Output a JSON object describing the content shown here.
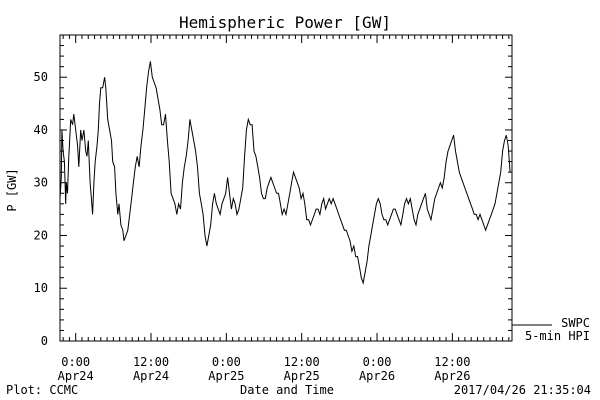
{
  "chart_data": {
    "type": "line",
    "title": "Hemispheric Power [GW]",
    "ylabel": "P [GW]",
    "xlabel": "Date and Time",
    "ylim": [
      0,
      58
    ],
    "yticks": [
      0,
      10,
      20,
      30,
      40,
      50
    ],
    "xlim_hours": [
      -2.5,
      69.5
    ],
    "xticks": [
      {
        "hour": 0,
        "time": "0:00",
        "date": "Apr24"
      },
      {
        "hour": 12,
        "time": "12:00",
        "date": "Apr24"
      },
      {
        "hour": 24,
        "time": "0:00",
        "date": "Apr25"
      },
      {
        "hour": 36,
        "time": "12:00",
        "date": "Apr25"
      },
      {
        "hour": 48,
        "time": "0:00",
        "date": "Apr26"
      },
      {
        "hour": 60,
        "time": "12:00",
        "date": "Apr26"
      }
    ],
    "series": [
      {
        "name": "5-min HPI",
        "source": "SWPC",
        "color": "#000000",
        "x": [
          -2.5,
          -2.3,
          -2.2,
          -2.0,
          -1.8,
          -1.6,
          -1.5,
          -1.3,
          -1.1,
          -1.0,
          -0.8,
          -0.5,
          -0.3,
          0.0,
          0.3,
          0.5,
          0.8,
          1.0,
          1.3,
          1.6,
          1.8,
          2.0,
          2.3,
          2.5,
          2.7,
          2.9,
          3.1,
          3.4,
          3.6,
          3.8,
          4.0,
          4.3,
          4.6,
          4.8,
          5.1,
          5.4,
          5.7,
          5.9,
          6.2,
          6.4,
          6.7,
          6.9,
          7.2,
          7.5,
          7.7,
          8.0,
          8.3,
          8.6,
          8.9,
          9.2,
          9.5,
          9.8,
          10.1,
          10.4,
          10.7,
          11.0,
          11.3,
          11.6,
          11.9,
          12.2,
          12.5,
          12.8,
          13.1,
          13.4,
          13.7,
          14.0,
          14.3,
          14.6,
          14.9,
          15.2,
          15.5,
          15.8,
          16.1,
          16.4,
          16.7,
          17.0,
          17.3,
          17.6,
          17.9,
          18.2,
          18.5,
          18.8,
          19.1,
          19.4,
          19.7,
          20.0,
          20.3,
          20.6,
          20.9,
          21.2,
          21.5,
          21.8,
          22.1,
          22.4,
          22.7,
          23.0,
          23.3,
          23.6,
          23.9,
          24.2,
          24.5,
          24.8,
          25.1,
          25.4,
          25.7,
          26.0,
          26.3,
          26.6,
          26.9,
          27.2,
          27.5,
          27.8,
          28.1,
          28.4,
          28.7,
          29.0,
          29.3,
          29.6,
          29.9,
          30.2,
          30.5,
          30.8,
          31.1,
          31.4,
          31.7,
          32.0,
          32.3,
          32.6,
          32.9,
          33.2,
          33.5,
          33.8,
          34.1,
          34.4,
          34.7,
          35.0,
          35.3,
          35.6,
          35.9,
          36.2,
          36.5,
          36.8,
          37.1,
          37.4,
          37.7,
          38.0,
          38.3,
          38.6,
          38.9,
          39.2,
          39.5,
          39.8,
          40.1,
          40.4,
          40.7,
          41.0,
          41.3,
          41.6,
          41.9,
          42.2,
          42.5,
          42.8,
          43.1,
          43.4,
          43.7,
          44.0,
          44.3,
          44.6,
          44.9,
          45.2,
          45.5,
          45.8,
          46.1,
          46.4,
          46.7,
          47.0,
          47.3,
          47.6,
          47.9,
          48.2,
          48.5,
          48.8,
          49.1,
          49.4,
          49.7,
          50.0,
          50.3,
          50.6,
          50.9,
          51.2,
          51.5,
          51.8,
          52.1,
          52.4,
          52.7,
          53.0,
          53.3,
          53.6,
          53.9,
          54.2,
          54.5,
          54.8,
          55.1,
          55.4,
          55.7,
          56.0,
          56.3,
          56.6,
          56.9,
          57.2,
          57.5,
          57.8,
          58.1,
          58.4,
          58.7,
          59.0,
          59.3,
          59.6,
          59.9,
          60.2,
          60.5,
          60.8,
          61.1,
          61.4,
          61.7,
          62.0,
          62.3,
          62.6,
          62.9,
          63.2,
          63.5,
          63.8,
          64.1,
          64.4,
          64.7,
          65.0,
          65.3,
          65.6,
          65.9,
          66.2,
          66.5,
          66.8,
          67.1,
          67.4,
          67.7,
          68.0,
          68.3,
          68.6,
          68.9,
          69.2
        ],
        "y": [
          27,
          31,
          40,
          36,
          34,
          26,
          30,
          28,
          35,
          37,
          42,
          41,
          43,
          40,
          37,
          33,
          40,
          38,
          40,
          36,
          35,
          38,
          30,
          27,
          24,
          30,
          34,
          37,
          40,
          45,
          48,
          48,
          50,
          48,
          42,
          40,
          38,
          34,
          33,
          28,
          24,
          26,
          22,
          21,
          19,
          20,
          21,
          24,
          27,
          30,
          33,
          35,
          33,
          37,
          40,
          44,
          48,
          51,
          53,
          50,
          49,
          48,
          46,
          44,
          41,
          41,
          43,
          38,
          34,
          28,
          27,
          26,
          24,
          26,
          25,
          30,
          33,
          35,
          38,
          42,
          40,
          38,
          36,
          33,
          28,
          26,
          24,
          20,
          18,
          20,
          22,
          26,
          28,
          26,
          25,
          24,
          26,
          27,
          28,
          31,
          28,
          25,
          27,
          26,
          24,
          25,
          27,
          29,
          35,
          40,
          42,
          41,
          41,
          36,
          35,
          33,
          31,
          28,
          27,
          27,
          29,
          30,
          31,
          30,
          29,
          28,
          28,
          26,
          24,
          25,
          24,
          26,
          28,
          30,
          32,
          31,
          30,
          29,
          27,
          28,
          26,
          23,
          23,
          22,
          23,
          24,
          25,
          25,
          24,
          26,
          27,
          25,
          26,
          27,
          26,
          27,
          26,
          25,
          24,
          23,
          22,
          21,
          21,
          20,
          19,
          17,
          18,
          16,
          16,
          14,
          12,
          11,
          13,
          15,
          18,
          20,
          22,
          24,
          26,
          27,
          26,
          24,
          23,
          23,
          22,
          23,
          24,
          25,
          25,
          24,
          23,
          22,
          24,
          26,
          27,
          26,
          27,
          25,
          23,
          22,
          24,
          25,
          26,
          27,
          28,
          25,
          24,
          23,
          25,
          27,
          28,
          29,
          30,
          29,
          31,
          34,
          36,
          37,
          38,
          39,
          36,
          34,
          32,
          31,
          30,
          29,
          28,
          27,
          26,
          25,
          24,
          24,
          23,
          24,
          23,
          22,
          21,
          22,
          23,
          24,
          25,
          26,
          28,
          30,
          32,
          36,
          38,
          39,
          37,
          32
        ]
      }
    ],
    "legend": {
      "position": "right-bottom",
      "line1": "SWPC",
      "line2": "5-min HPI"
    }
  },
  "footer": {
    "left": "Plot: CCMC",
    "center": "Date and Time",
    "right": "2017/04/26 21:35:04"
  }
}
